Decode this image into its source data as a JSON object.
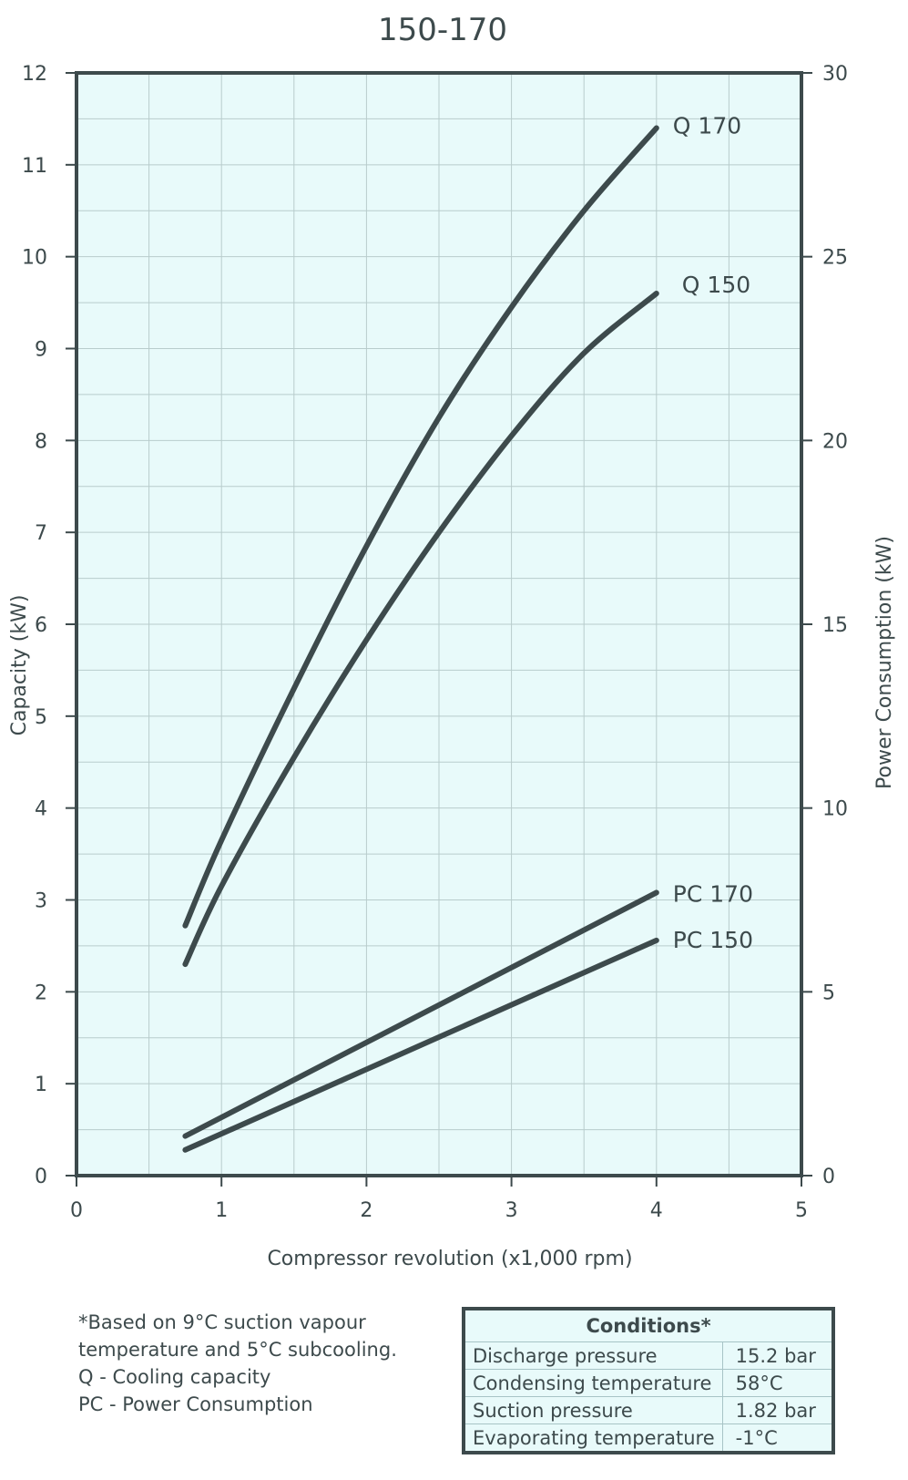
{
  "chart_data": {
    "type": "line",
    "title": "150-170",
    "xlabel": "Compressor revolution (x1,000 rpm)",
    "ylabel": "Capacity (kW)",
    "y2label": "Power Consumption (kW)",
    "xlim": [
      0,
      5
    ],
    "ylim": [
      0,
      12
    ],
    "y2lim": [
      0,
      30
    ],
    "xticks": [
      "0",
      "1",
      "2",
      "3",
      "4",
      "5"
    ],
    "yticks": [
      "0",
      "1",
      "2",
      "3",
      "4",
      "5",
      "6",
      "7",
      "8",
      "9",
      "10",
      "11",
      "12"
    ],
    "y2ticks": [
      "0",
      "5",
      "10",
      "15",
      "20",
      "25",
      "30"
    ],
    "grid": true,
    "background": "#e8fafa",
    "line_color": "#3d4a4c",
    "series": [
      {
        "name": "Q 170",
        "axis": "left",
        "x": [
          0.75,
          1.0,
          1.5,
          2.0,
          2.5,
          3.0,
          3.5,
          4.0
        ],
        "y": [
          2.72,
          3.65,
          5.3,
          6.85,
          8.25,
          9.45,
          10.5,
          11.4
        ]
      },
      {
        "name": "Q 150",
        "axis": "left",
        "x": [
          0.75,
          1.0,
          1.5,
          2.0,
          2.5,
          3.0,
          3.5,
          4.0
        ],
        "y": [
          2.3,
          3.15,
          4.55,
          5.83,
          7.0,
          8.05,
          8.95,
          9.6
        ]
      },
      {
        "name": "PC 170",
        "axis": "left",
        "x": [
          0.75,
          4.0
        ],
        "y": [
          0.43,
          3.08
        ]
      },
      {
        "name": "PC 150",
        "axis": "left",
        "x": [
          0.75,
          4.0
        ],
        "y": [
          0.28,
          2.56
        ]
      }
    ]
  },
  "footnotes": [
    "*Based on 9°C suction vapour",
    "temperature and 5°C subcooling.",
    "Q   -  Cooling capacity",
    "PC -  Power Consumption"
  ],
  "conditions": {
    "title": "Conditions*",
    "rows": [
      {
        "label": "Discharge pressure",
        "value": "15.2 bar"
      },
      {
        "label": "Condensing temperature",
        "value": "58°C"
      },
      {
        "label": "Suction pressure",
        "value": "1.82 bar"
      },
      {
        "label": "Evaporating temperature",
        "value": "-1°C"
      }
    ]
  }
}
